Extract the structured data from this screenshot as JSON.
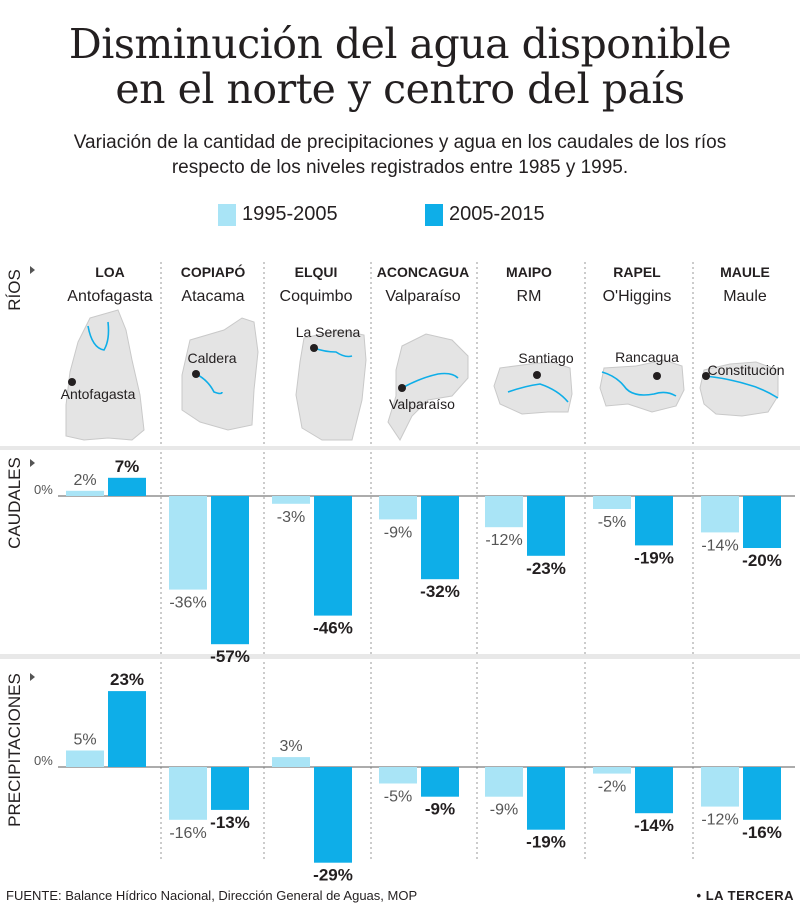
{
  "title_lines": [
    "Disminución del agua disponible",
    "en el norte y centro del país"
  ],
  "subtitle_lines": [
    "Variación de la cantidad de precipitaciones y agua en los caudales de los ríos",
    "respecto de los niveles registrados  entre 1985 y 1995."
  ],
  "legend": [
    {
      "label": "1995-2005",
      "color": "#a9e4f6"
    },
    {
      "label": "2005-2015",
      "color": "#0eaee8"
    }
  ],
  "section_labels": {
    "rios": "RÍOS",
    "caudales": "CAUDALES",
    "precipitaciones": "PRECIPITACIONES"
  },
  "zero_label": "0%",
  "chart_data": [
    {
      "type": "bar",
      "title": "CAUDALES",
      "categories": [
        "LOA",
        "COPIAPÓ",
        "ELQUI",
        "ACONCAGUA",
        "MAIPO",
        "RAPEL",
        "MAULE"
      ],
      "series": [
        {
          "name": "1995-2005",
          "values": [
            2,
            -36,
            -3,
            -9,
            -12,
            -5,
            -14
          ]
        },
        {
          "name": "2005-2015",
          "values": [
            7,
            -57,
            -46,
            -32,
            -23,
            -19,
            -20
          ]
        }
      ],
      "value_labels": [
        [
          "2%",
          "-36%",
          "-3%",
          "-9%",
          "-12%",
          "-5%",
          "-14%"
        ],
        [
          "7%",
          "-57%",
          "-46%",
          "-32%",
          "-23%",
          "-19%",
          "-20%"
        ]
      ],
      "ylim": [
        -57,
        7
      ],
      "grid": false
    },
    {
      "type": "bar",
      "title": "PRECIPITACIONES",
      "categories": [
        "LOA",
        "COPIAPÓ",
        "ELQUI",
        "ACONCAGUA",
        "MAIPO",
        "RAPEL",
        "MAULE"
      ],
      "series": [
        {
          "name": "1995-2005",
          "values": [
            5,
            -16,
            3,
            -5,
            -9,
            -2,
            -12
          ]
        },
        {
          "name": "2005-2015",
          "values": [
            23,
            -13,
            -29,
            -9,
            -19,
            -14,
            -16
          ]
        }
      ],
      "value_labels": [
        [
          "5%",
          "-16%",
          "3%",
          "-5%",
          "-9%",
          "-2%",
          "-12%"
        ],
        [
          "23%",
          "-13%",
          "-29%",
          "-9%",
          "-19%",
          "-14%",
          "-16%"
        ]
      ],
      "ylim": [
        -29,
        23
      ],
      "grid": false
    }
  ],
  "rivers": [
    {
      "name": "LOA",
      "region": "Antofagasta",
      "city": "Antofagasta"
    },
    {
      "name": "COPIAPÓ",
      "region": "Atacama",
      "city": "Caldera"
    },
    {
      "name": "ELQUI",
      "region": "Coquimbo",
      "city": "La Serena"
    },
    {
      "name": "ACONCAGUA",
      "region": "Valparaíso",
      "city": "Valparaíso"
    },
    {
      "name": "MAIPO",
      "region": "RM",
      "city": "Santiago"
    },
    {
      "name": "RAPEL",
      "region": "O'Higgins",
      "city": "Rancagua"
    },
    {
      "name": "MAULE",
      "region": "Maule",
      "city": "Constitución"
    }
  ],
  "colors": {
    "light": "#a9e4f6",
    "dark": "#0eaee8",
    "map": "#e4e4e4",
    "map_stroke": "#c9c9c9",
    "river": "#0eaee8",
    "divider": "#e8e8e8",
    "text": "#231f20"
  },
  "footer": {
    "source": "FUENTE: Balance Hídrico Nacional, Dirección General de Aguas, MOP",
    "brand": "• LA TERCERA"
  }
}
